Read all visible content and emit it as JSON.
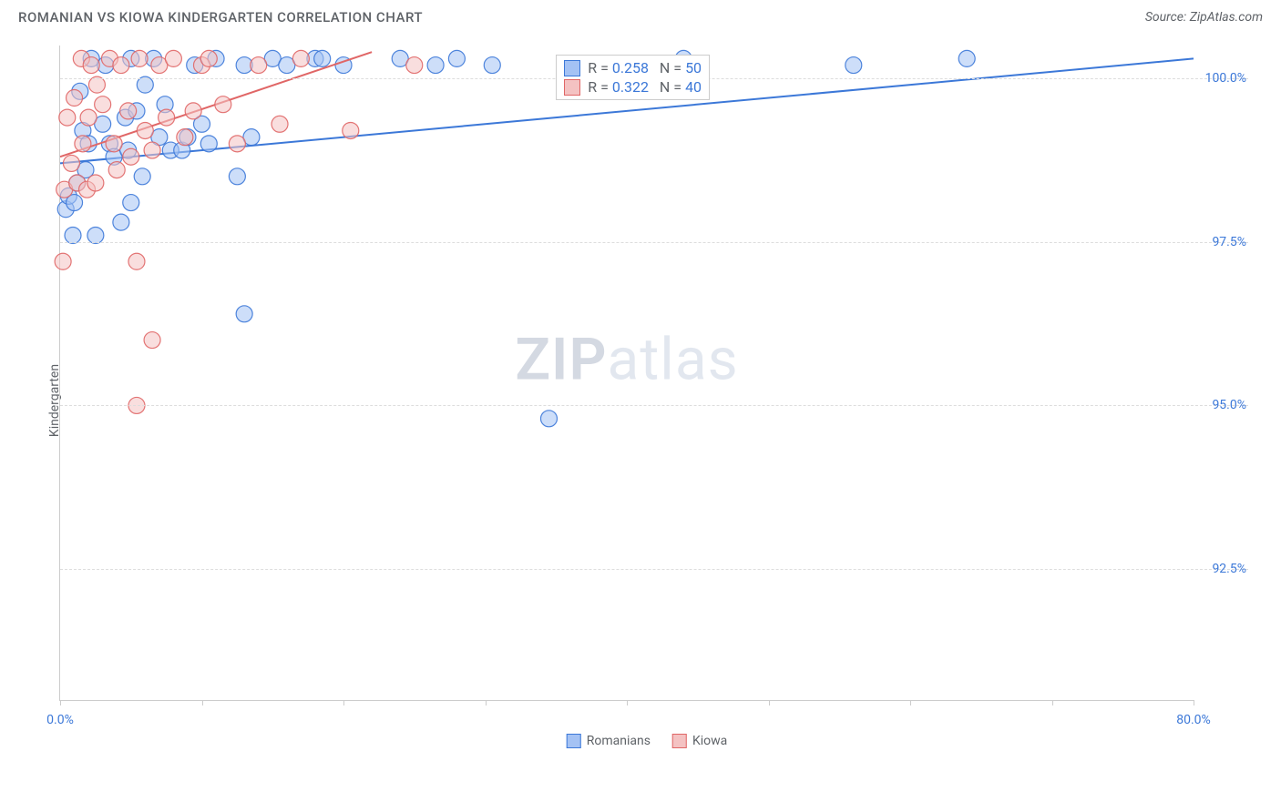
{
  "title": "ROMANIAN VS KIOWA KINDERGARTEN CORRELATION CHART",
  "source": "Source: ZipAtlas.com",
  "y_axis_label": "Kindergarten",
  "watermark_bold": "ZIP",
  "watermark_light": "atlas",
  "chart": {
    "type": "scatter",
    "xlim": [
      0,
      80
    ],
    "ylim": [
      90.5,
      100.5
    ],
    "x_ticks": [
      0,
      10,
      20,
      30,
      40,
      50,
      60,
      70,
      80
    ],
    "x_tick_labels": {
      "0": "0.0%",
      "80": "80.0%"
    },
    "y_ticks": [
      92.5,
      95.0,
      97.5,
      100.0
    ],
    "y_tick_labels": [
      "92.5%",
      "95.0%",
      "97.5%",
      "100.0%"
    ],
    "grid_color": "#dddddd",
    "background_color": "#ffffff",
    "point_radius": 9,
    "point_opacity": 0.55,
    "series": [
      {
        "name": "Romanians",
        "color_fill": "#a4c2f4",
        "color_stroke": "#3c78d8",
        "stat_R": "0.258",
        "stat_N": "50",
        "trend": {
          "x1": 0,
          "y1": 98.7,
          "x2": 80,
          "y2": 100.3
        },
        "data": [
          [
            0.4,
            98.0
          ],
          [
            0.6,
            98.2
          ],
          [
            0.9,
            97.6
          ],
          [
            1.0,
            98.1
          ],
          [
            1.2,
            98.4
          ],
          [
            1.4,
            99.8
          ],
          [
            1.6,
            99.2
          ],
          [
            1.8,
            98.6
          ],
          [
            2.0,
            99.0
          ],
          [
            2.2,
            100.3
          ],
          [
            2.5,
            97.6
          ],
          [
            3.0,
            99.3
          ],
          [
            3.2,
            100.2
          ],
          [
            3.5,
            99.0
          ],
          [
            3.8,
            98.8
          ],
          [
            4.3,
            97.8
          ],
          [
            4.6,
            99.4
          ],
          [
            4.8,
            98.9
          ],
          [
            5.0,
            100.3
          ],
          [
            5.4,
            99.5
          ],
          [
            5.8,
            98.5
          ],
          [
            6.0,
            99.9
          ],
          [
            6.6,
            100.3
          ],
          [
            7.0,
            99.1
          ],
          [
            7.4,
            99.6
          ],
          [
            7.8,
            98.9
          ],
          [
            8.6,
            98.9
          ],
          [
            9.0,
            99.1
          ],
          [
            9.5,
            100.2
          ],
          [
            10.0,
            99.3
          ],
          [
            10.5,
            99.0
          ],
          [
            11.0,
            100.3
          ],
          [
            12.5,
            98.5
          ],
          [
            13.0,
            100.2
          ],
          [
            13.5,
            99.1
          ],
          [
            13.0,
            96.4
          ],
          [
            15.0,
            100.3
          ],
          [
            16.0,
            100.2
          ],
          [
            18.0,
            100.3
          ],
          [
            18.5,
            100.3
          ],
          [
            20.0,
            100.2
          ],
          [
            24.0,
            100.3
          ],
          [
            26.5,
            100.2
          ],
          [
            28.0,
            100.3
          ],
          [
            30.5,
            100.2
          ],
          [
            34.5,
            94.8
          ],
          [
            44.0,
            100.3
          ],
          [
            56.0,
            100.2
          ],
          [
            64.0,
            100.3
          ],
          [
            5.0,
            98.1
          ]
        ]
      },
      {
        "name": "Kiowa",
        "color_fill": "#f4c2c2",
        "color_stroke": "#e06666",
        "stat_R": "0.322",
        "stat_N": "40",
        "trend": {
          "x1": 0,
          "y1": 98.8,
          "x2": 22,
          "y2": 100.4
        },
        "data": [
          [
            0.3,
            98.3
          ],
          [
            0.5,
            99.4
          ],
          [
            0.8,
            98.7
          ],
          [
            1.0,
            99.7
          ],
          [
            1.2,
            98.4
          ],
          [
            1.5,
            100.3
          ],
          [
            1.6,
            99.0
          ],
          [
            1.9,
            98.3
          ],
          [
            2.0,
            99.4
          ],
          [
            2.2,
            100.2
          ],
          [
            2.5,
            98.4
          ],
          [
            3.0,
            99.6
          ],
          [
            3.5,
            100.3
          ],
          [
            3.8,
            99.0
          ],
          [
            4.0,
            98.6
          ],
          [
            4.3,
            100.2
          ],
          [
            4.8,
            99.5
          ],
          [
            5.0,
            98.8
          ],
          [
            5.4,
            97.2
          ],
          [
            5.6,
            100.3
          ],
          [
            6.0,
            99.2
          ],
          [
            6.5,
            98.9
          ],
          [
            7.0,
            100.2
          ],
          [
            7.5,
            99.4
          ],
          [
            8.0,
            100.3
          ],
          [
            8.8,
            99.1
          ],
          [
            9.4,
            99.5
          ],
          [
            10.0,
            100.2
          ],
          [
            10.5,
            100.3
          ],
          [
            11.5,
            99.6
          ],
          [
            12.5,
            99.0
          ],
          [
            14.0,
            100.2
          ],
          [
            15.5,
            99.3
          ],
          [
            17.0,
            100.3
          ],
          [
            20.5,
            99.2
          ],
          [
            25.0,
            100.2
          ],
          [
            5.4,
            95.0
          ],
          [
            6.5,
            96.0
          ],
          [
            0.2,
            97.2
          ],
          [
            2.6,
            99.9
          ]
        ]
      }
    ]
  },
  "stat_box": {
    "label_R": "R =",
    "label_N": "N ="
  },
  "bottom_legend": {
    "items": [
      "Romanians",
      "Kiowa"
    ]
  }
}
